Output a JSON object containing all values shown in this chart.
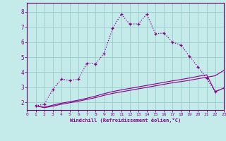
{
  "xlabel": "Windchill (Refroidissement éolien,°C)",
  "background_color": "#c5eaea",
  "grid_color": "#a0d0d0",
  "line_color": "#880088",
  "xlim": [
    0,
    23
  ],
  "ylim": [
    1.5,
    8.6
  ],
  "xticks": [
    0,
    1,
    2,
    3,
    4,
    5,
    6,
    7,
    8,
    9,
    10,
    11,
    12,
    13,
    14,
    15,
    16,
    17,
    18,
    19,
    20,
    21,
    22,
    23
  ],
  "yticks": [
    2,
    3,
    4,
    5,
    6,
    7,
    8
  ],
  "series1_x": [
    1,
    2,
    3,
    4,
    5,
    6,
    7,
    8,
    9,
    10,
    11,
    12,
    13,
    14,
    15,
    16,
    17,
    18,
    19,
    20,
    21,
    22,
    23
  ],
  "series1_y": [
    1.78,
    1.88,
    2.85,
    3.55,
    3.45,
    3.55,
    4.6,
    4.55,
    5.25,
    6.9,
    7.85,
    7.2,
    7.2,
    7.85,
    6.55,
    6.6,
    6.0,
    5.8,
    5.05,
    4.35,
    3.6,
    2.7,
    2.95
  ],
  "series2_x": [
    1,
    2,
    3,
    4,
    5,
    6,
    7,
    8,
    9,
    10,
    11,
    12,
    13,
    14,
    15,
    16,
    17,
    18,
    19,
    20,
    21,
    22,
    23
  ],
  "series2_y": [
    1.78,
    1.68,
    1.82,
    1.95,
    2.05,
    2.15,
    2.28,
    2.42,
    2.58,
    2.72,
    2.83,
    2.93,
    3.03,
    3.13,
    3.23,
    3.33,
    3.43,
    3.52,
    3.62,
    3.73,
    3.83,
    2.72,
    2.95
  ],
  "series3_x": [
    1,
    2,
    3,
    4,
    5,
    6,
    7,
    8,
    9,
    10,
    11,
    12,
    13,
    14,
    15,
    16,
    17,
    18,
    19,
    20,
    21,
    22,
    23
  ],
  "series3_y": [
    1.78,
    1.65,
    1.75,
    1.88,
    1.98,
    2.08,
    2.2,
    2.32,
    2.47,
    2.6,
    2.7,
    2.8,
    2.9,
    3.0,
    3.1,
    3.2,
    3.3,
    3.38,
    3.47,
    3.57,
    3.67,
    3.77,
    4.12
  ]
}
